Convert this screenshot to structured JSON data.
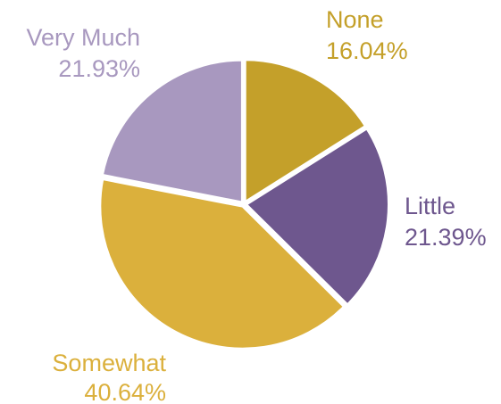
{
  "chart_data": {
    "type": "pie",
    "slices": [
      {
        "name": "None",
        "value": 16.04,
        "value_label": "16.04%",
        "color": "#c4a02a"
      },
      {
        "name": "Little",
        "value": 21.39,
        "value_label": "21.39%",
        "color": "#6e578e"
      },
      {
        "name": "Somewhat",
        "value": 40.64,
        "value_label": "40.64%",
        "color": "#dbb03c"
      },
      {
        "name": "Very Much",
        "value": 21.93,
        "value_label": "21.93%",
        "color": "#a898bf"
      }
    ],
    "start_angle": "12 o'clock",
    "direction": "clockwise",
    "slice_separator_color": "#ffffff"
  }
}
